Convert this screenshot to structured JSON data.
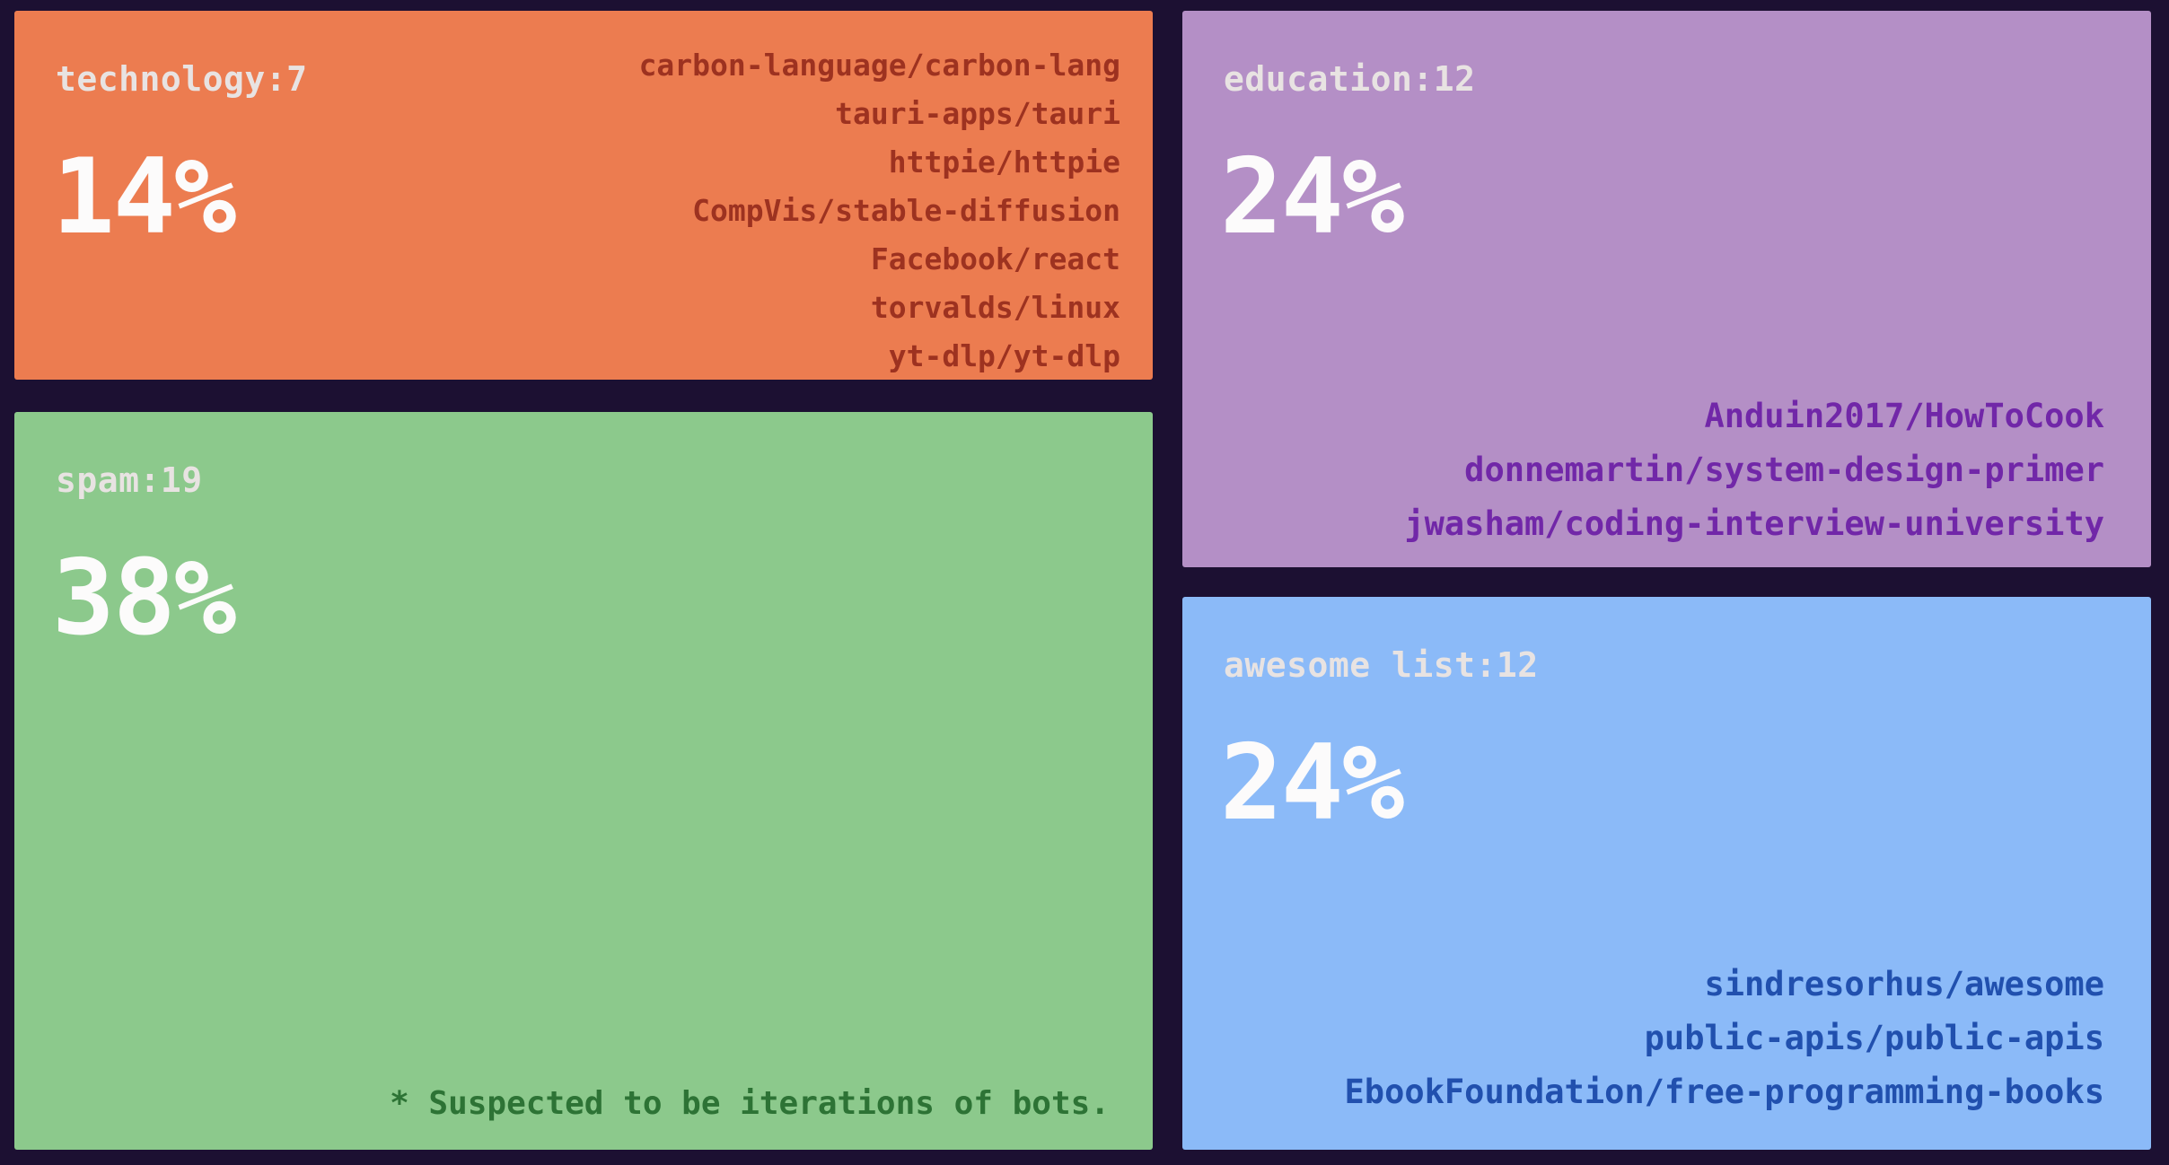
{
  "chart_data": {
    "type": "treemap",
    "background": "#1C1032",
    "label_color": "#E8E3E2",
    "percent_color": "#FCFBFB",
    "legend_position": "none",
    "tiles": [
      {
        "id": "technology",
        "label": "technology:7",
        "category": "technology",
        "count": 7,
        "percent": "14%",
        "percent_value": 14,
        "color": "#EC7C50",
        "repo_text_color": "#9D3220",
        "repos": [
          "carbon-language/carbon-lang",
          "tauri-apps/tauri",
          "httpie/httpie",
          "CompVis/stable-diffusion",
          "Facebook/react",
          "torvalds/linux",
          "yt-dlp/yt-dlp"
        ]
      },
      {
        "id": "spam",
        "label": "spam:19",
        "category": "spam",
        "count": 19,
        "percent": "38%",
        "percent_value": 38,
        "color": "#8CC98C",
        "note_text_color": "#2D7335",
        "note": "* Suspected to be iterations of bots.",
        "repos": []
      },
      {
        "id": "education",
        "label": "education:12",
        "category": "education",
        "count": 12,
        "percent": "24%",
        "percent_value": 24,
        "color": "#B48FC6",
        "repo_text_color": "#7127A8",
        "repos": [
          "Anduin2017/HowToCook",
          "donnemartin/system-design-primer",
          "jwasham/coding-interview-university"
        ]
      },
      {
        "id": "awesome-list",
        "label": "awesome list:12",
        "category": "awesome list",
        "count": 12,
        "percent": "24%",
        "percent_value": 24,
        "color": "#8BBAF8",
        "repo_text_color": "#2150AE",
        "repos": [
          "sindresorhus/awesome",
          "public-apis/public-apis",
          "EbookFoundation/free-programming-books"
        ]
      }
    ]
  }
}
